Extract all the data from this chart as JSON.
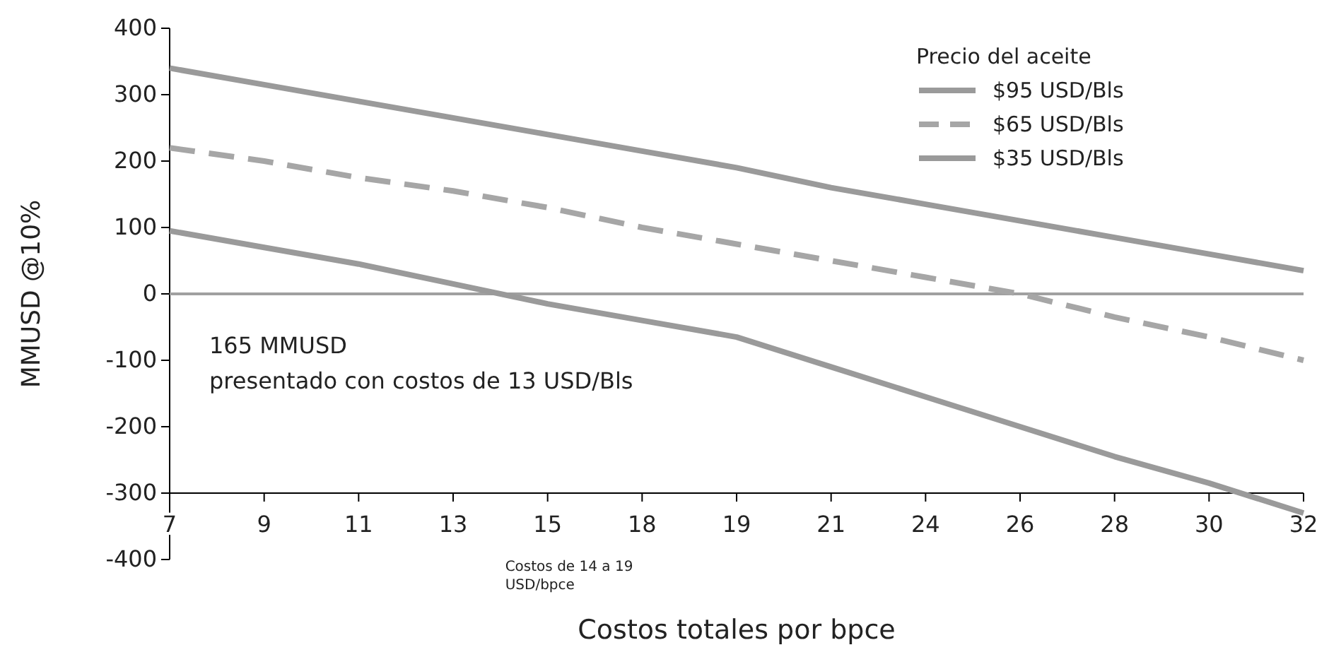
{
  "chart_data": {
    "type": "line",
    "xlabel": "Costos totales por bpce",
    "ylabel": "MMUSD @10%",
    "legend_title": "Precio del aceite",
    "categories": [
      "7",
      "9",
      "11",
      "13",
      "15",
      "18",
      "19",
      "21",
      "24",
      "26",
      "28",
      "30",
      "32"
    ],
    "series": [
      {
        "name": "$95 USD/Bls",
        "color": "#9a9a9a",
        "line_style": "solid",
        "values": [
          340,
          315,
          290,
          265,
          240,
          215,
          190,
          160,
          135,
          110,
          85,
          60,
          35
        ]
      },
      {
        "name": "$65 USD/Bls",
        "color": "#a6a6a6",
        "line_style": "dashed",
        "values": [
          220,
          200,
          175,
          155,
          130,
          100,
          75,
          50,
          25,
          0,
          -35,
          -65,
          -100
        ]
      },
      {
        "name": "$35 USD/Bls",
        "color": "#9a9a9a",
        "line_style": "solid",
        "values": [
          95,
          70,
          45,
          15,
          -15,
          -40,
          -65,
          -110,
          -155,
          -200,
          -245,
          -285,
          -330
        ]
      }
    ],
    "ylim": [
      -400,
      400
    ],
    "yticks": [
      -400,
      -300,
      -200,
      -100,
      0,
      100,
      200,
      300,
      400
    ],
    "ref_lines": [
      {
        "axis": "y",
        "value": 0,
        "color": "#a0a0a0"
      }
    ],
    "annotations": [
      "165 MMUSD\npresentado con costos de 13 USD/Bls",
      "Costos de 14 a 19\nUSD/bpce"
    ],
    "legend": "top right",
    "grid": false,
    "marker": "none"
  }
}
